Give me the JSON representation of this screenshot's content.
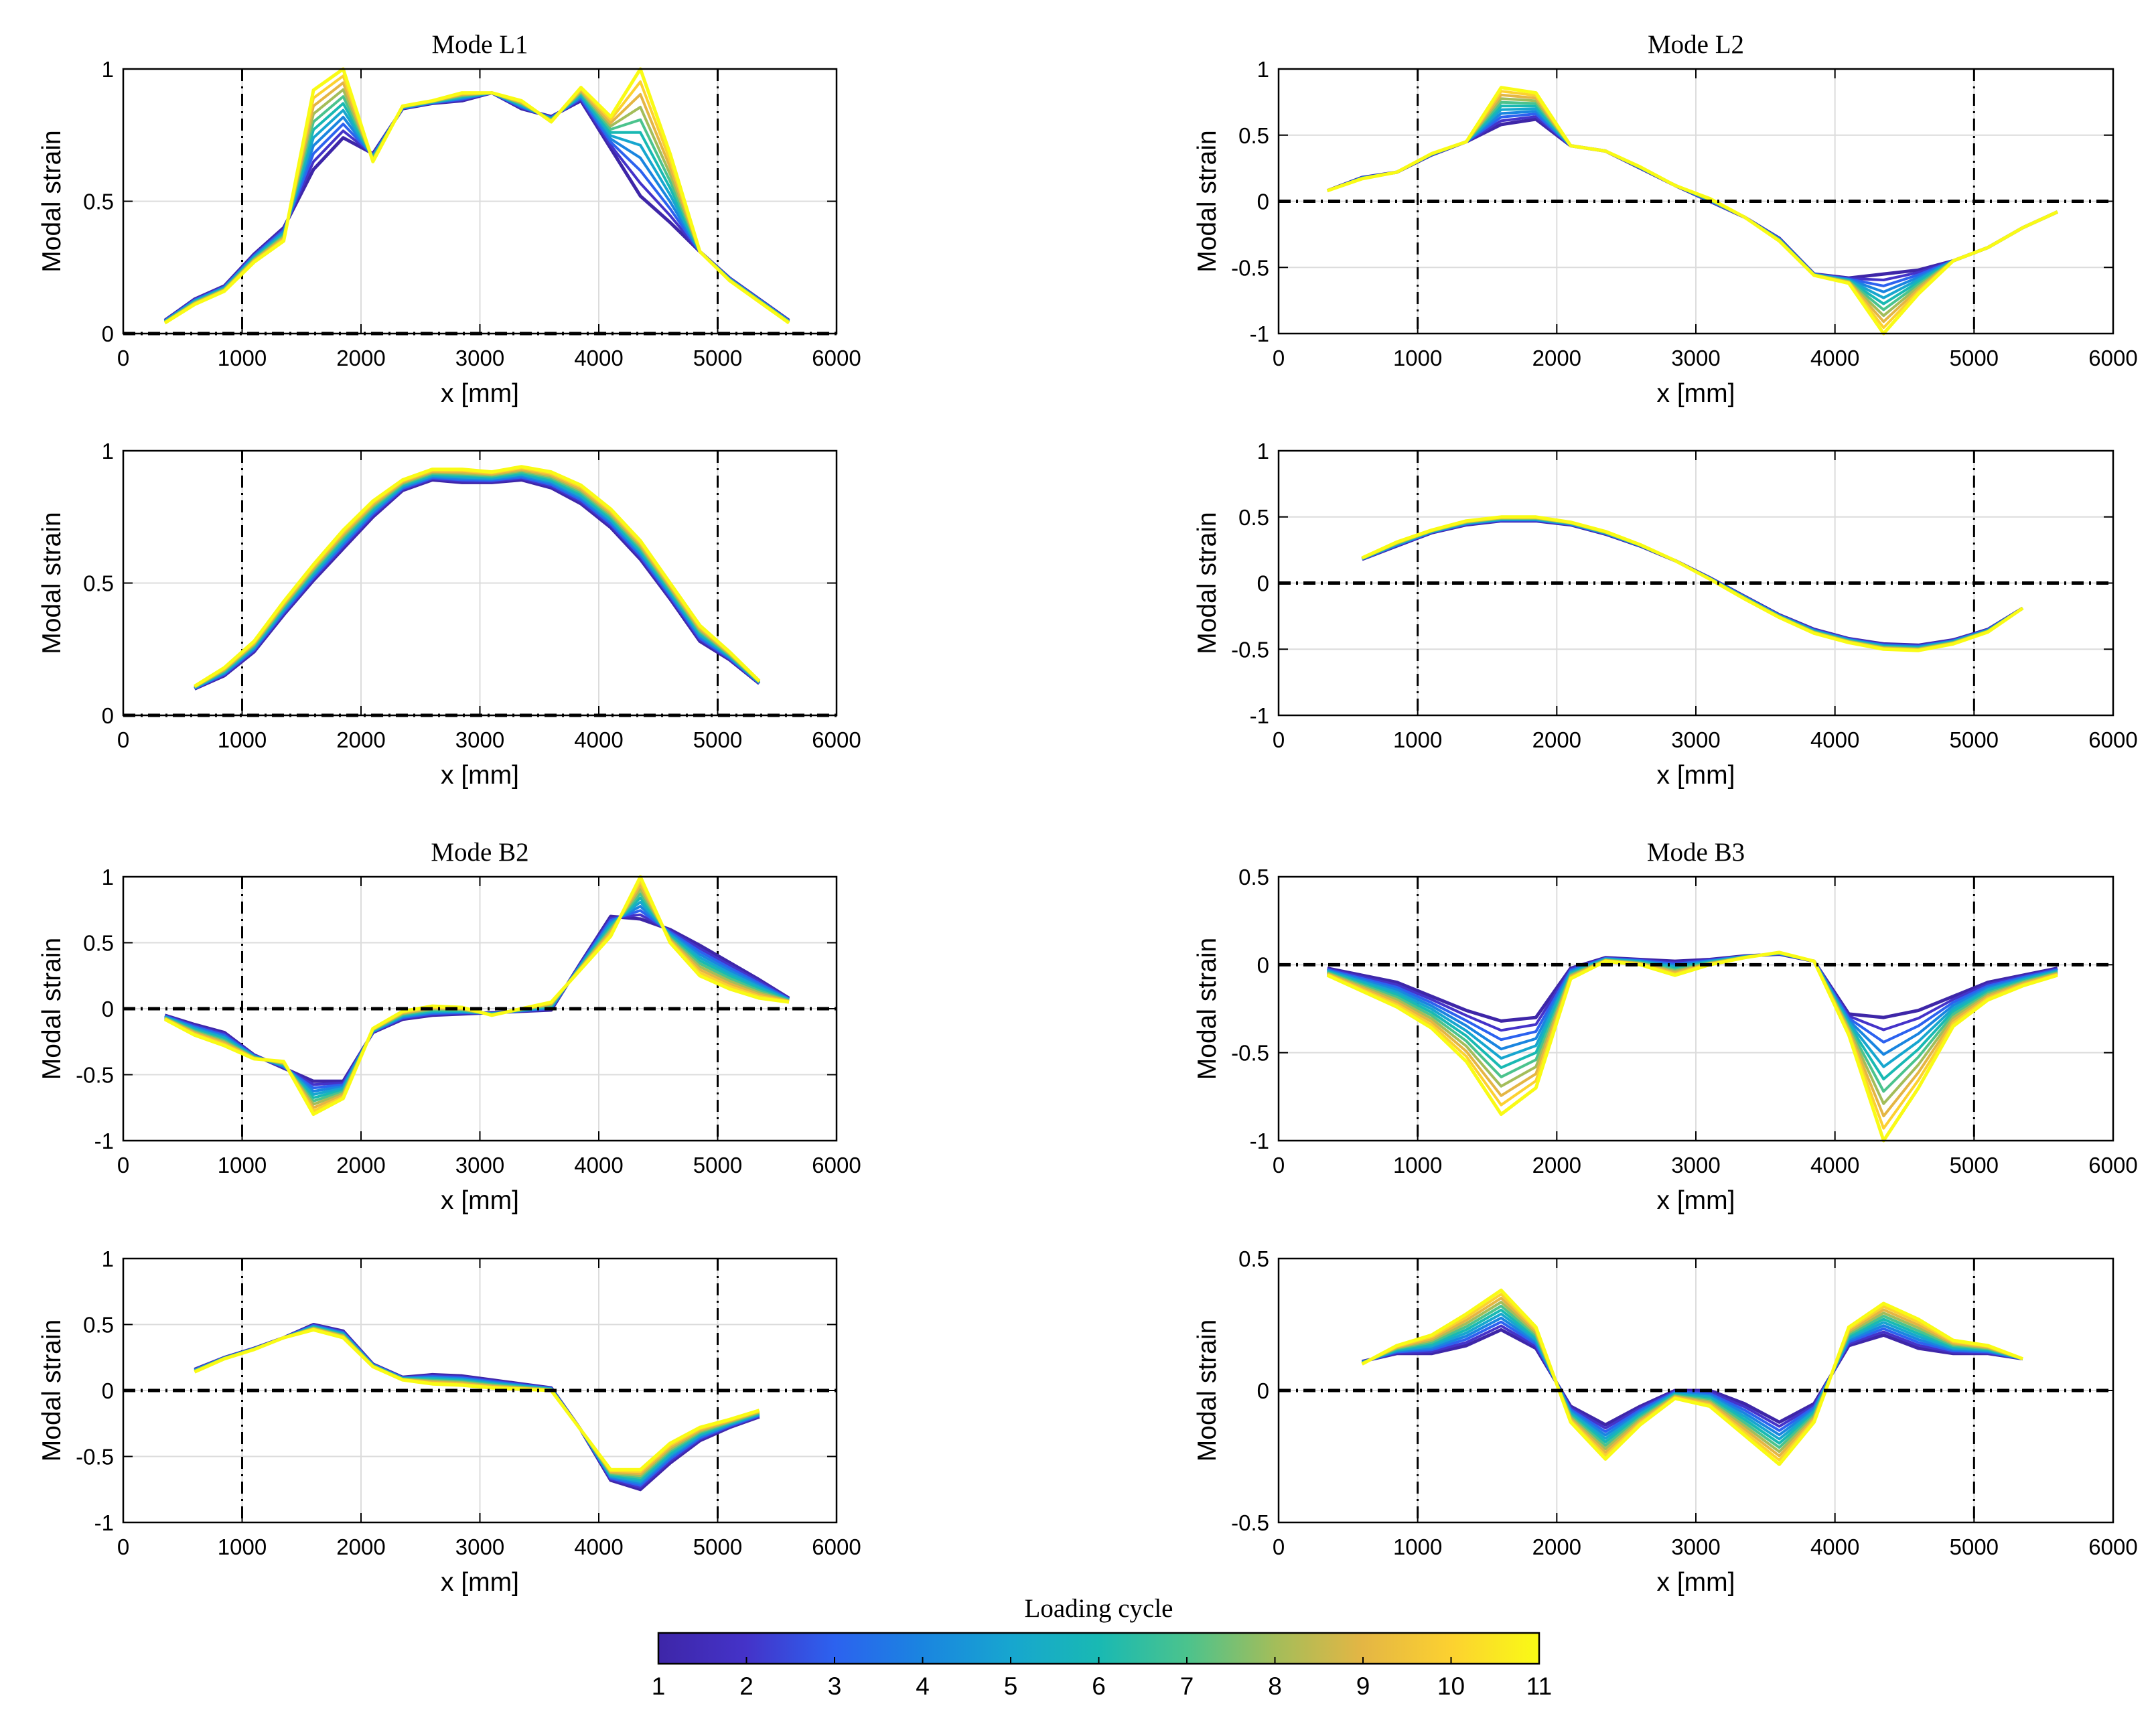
{
  "figure": {
    "colorbar": {
      "label": "Loading cycle",
      "ticks": [
        "1",
        "2",
        "3",
        "4",
        "5",
        "6",
        "7",
        "8",
        "9",
        "10",
        "11"
      ],
      "stops": [
        "#3e26a8",
        "#4433c9",
        "#2c62ef",
        "#1a85e0",
        "#17a6cf",
        "#19b9b3",
        "#4bc38d",
        "#a3bd5a",
        "#e4b644",
        "#fcd130",
        "#f9fb15"
      ]
    }
  },
  "chart_data": [
    {
      "type": "line",
      "title": "Mode L1",
      "xlabel": "x [mm]",
      "ylabel": "Modal strain",
      "xlim": [
        0,
        6000
      ],
      "ylim": [
        0,
        1
      ],
      "xticks": [
        "0",
        "1000",
        "2000",
        "3000",
        "4000",
        "5000",
        "6000"
      ],
      "yticks": [
        "0",
        "0.5",
        "1"
      ],
      "vlines": [
        1000,
        5000
      ],
      "hline": 0,
      "x": [
        350,
        600,
        850,
        1100,
        1350,
        1600,
        1850,
        2100,
        2350,
        2600,
        2850,
        3100,
        3350,
        3600,
        3850,
        4100,
        4350,
        4600,
        4850,
        5100,
        5350,
        5600
      ],
      "series": [
        {
          "name": "Cycle 1",
          "values": [
            0.05,
            0.13,
            0.18,
            0.3,
            0.4,
            0.62,
            0.74,
            0.68,
            0.85,
            0.87,
            0.88,
            0.91,
            0.85,
            0.82,
            0.88,
            0.7,
            0.52,
            0.42,
            0.31,
            0.21,
            0.13,
            0.05
          ]
        },
        {
          "name": "Cycle 11",
          "values": [
            0.04,
            0.11,
            0.16,
            0.27,
            0.35,
            0.92,
            1.0,
            0.65,
            0.86,
            0.88,
            0.91,
            0.91,
            0.88,
            0.8,
            0.93,
            0.82,
            1.0,
            0.68,
            0.31,
            0.2,
            0.12,
            0.04
          ]
        }
      ]
    },
    {
      "type": "line",
      "title": "Mode L2",
      "xlabel": "x [mm]",
      "ylabel": "Modal strain",
      "xlim": [
        0,
        6000
      ],
      "ylim": [
        -1,
        1
      ],
      "xticks": [
        "0",
        "1000",
        "2000",
        "3000",
        "4000",
        "5000",
        "6000"
      ],
      "yticks": [
        "-1",
        "-0.5",
        "0",
        "0.5",
        "1"
      ],
      "vlines": [
        1000,
        5000
      ],
      "hline": 0,
      "x": [
        350,
        600,
        850,
        1100,
        1350,
        1600,
        1850,
        2100,
        2350,
        2600,
        2850,
        3100,
        3350,
        3600,
        3850,
        4100,
        4350,
        4600,
        4850,
        5100,
        5350,
        5600
      ],
      "series": [
        {
          "name": "Cycle 1",
          "values": [
            0.08,
            0.18,
            0.22,
            0.35,
            0.45,
            0.58,
            0.62,
            0.42,
            0.38,
            0.25,
            0.12,
            0.0,
            -0.12,
            -0.28,
            -0.55,
            -0.58,
            -0.55,
            -0.52,
            -0.45,
            -0.35,
            -0.2,
            -0.08
          ]
        },
        {
          "name": "Cycle 11",
          "values": [
            0.08,
            0.17,
            0.22,
            0.36,
            0.45,
            0.86,
            0.82,
            0.42,
            0.38,
            0.26,
            0.12,
            0.02,
            -0.12,
            -0.3,
            -0.56,
            -0.62,
            -1.0,
            -0.7,
            -0.45,
            -0.35,
            -0.2,
            -0.08
          ]
        }
      ]
    },
    {
      "type": "line",
      "title": "",
      "xlabel": "x [mm]",
      "ylabel": "Modal strain",
      "xlim": [
        0,
        6000
      ],
      "ylim": [
        0,
        1
      ],
      "xticks": [
        "0",
        "1000",
        "2000",
        "3000",
        "4000",
        "5000",
        "6000"
      ],
      "yticks": [
        "0",
        "0.5",
        "1"
      ],
      "vlines": [
        1000,
        5000
      ],
      "hline": 0,
      "x": [
        600,
        850,
        1100,
        1350,
        1600,
        1850,
        2100,
        2350,
        2600,
        2850,
        3100,
        3350,
        3600,
        3850,
        4100,
        4350,
        4600,
        4850,
        5100,
        5350
      ],
      "series": [
        {
          "name": "Cycle 1",
          "values": [
            0.1,
            0.15,
            0.24,
            0.38,
            0.51,
            0.63,
            0.75,
            0.85,
            0.89,
            0.88,
            0.88,
            0.89,
            0.86,
            0.8,
            0.71,
            0.59,
            0.44,
            0.28,
            0.21,
            0.12
          ]
        },
        {
          "name": "Cycle 11",
          "values": [
            0.11,
            0.18,
            0.28,
            0.43,
            0.57,
            0.7,
            0.81,
            0.89,
            0.93,
            0.93,
            0.92,
            0.94,
            0.92,
            0.87,
            0.78,
            0.66,
            0.5,
            0.34,
            0.24,
            0.13
          ]
        }
      ]
    },
    {
      "type": "line",
      "title": "",
      "xlabel": "x [mm]",
      "ylabel": "Modal strain",
      "xlim": [
        0,
        6000
      ],
      "ylim": [
        -1,
        1
      ],
      "xticks": [
        "0",
        "1000",
        "2000",
        "3000",
        "4000",
        "5000",
        "6000"
      ],
      "yticks": [
        "-1",
        "-0.5",
        "0",
        "0.5",
        "1"
      ],
      "vlines": [
        1000,
        5000
      ],
      "hline": 0,
      "x": [
        600,
        850,
        1100,
        1350,
        1600,
        1850,
        2100,
        2350,
        2600,
        2850,
        3100,
        3350,
        3600,
        3850,
        4100,
        4350,
        4600,
        4850,
        5100,
        5350
      ],
      "series": [
        {
          "name": "Cycle 1",
          "values": [
            0.18,
            0.28,
            0.38,
            0.44,
            0.47,
            0.47,
            0.44,
            0.37,
            0.28,
            0.17,
            0.04,
            -0.1,
            -0.24,
            -0.35,
            -0.42,
            -0.46,
            -0.47,
            -0.43,
            -0.35,
            -0.19
          ]
        },
        {
          "name": "Cycle 11",
          "values": [
            0.19,
            0.31,
            0.4,
            0.47,
            0.5,
            0.5,
            0.46,
            0.39,
            0.29,
            0.17,
            0.03,
            -0.12,
            -0.26,
            -0.38,
            -0.45,
            -0.5,
            -0.51,
            -0.46,
            -0.37,
            -0.19
          ]
        }
      ]
    },
    {
      "type": "line",
      "title": "Mode B2",
      "xlabel": "x [mm]",
      "ylabel": "Modal strain",
      "xlim": [
        0,
        6000
      ],
      "ylim": [
        -1,
        1
      ],
      "xticks": [
        "0",
        "1000",
        "2000",
        "3000",
        "4000",
        "5000",
        "6000"
      ],
      "yticks": [
        "-1",
        "-0.5",
        "0",
        "0.5",
        "1"
      ],
      "vlines": [
        1000,
        5000
      ],
      "hline": 0,
      "x": [
        350,
        600,
        850,
        1100,
        1350,
        1600,
        1850,
        2100,
        2350,
        2600,
        2850,
        3100,
        3350,
        3600,
        3850,
        4100,
        4350,
        4600,
        4850,
        5100,
        5350,
        5600
      ],
      "series": [
        {
          "name": "Cycle 1",
          "values": [
            -0.05,
            -0.12,
            -0.18,
            -0.35,
            -0.45,
            -0.55,
            -0.55,
            -0.18,
            -0.08,
            -0.05,
            -0.04,
            -0.03,
            -0.02,
            -0.01,
            0.35,
            0.7,
            0.68,
            0.6,
            0.48,
            0.35,
            0.22,
            0.08
          ]
        },
        {
          "name": "Cycle 11",
          "values": [
            -0.08,
            -0.2,
            -0.28,
            -0.38,
            -0.4,
            -0.8,
            -0.68,
            -0.15,
            -0.02,
            0.02,
            0.01,
            -0.05,
            0.0,
            0.05,
            0.3,
            0.55,
            1.0,
            0.5,
            0.25,
            0.15,
            0.08,
            0.05
          ]
        }
      ]
    },
    {
      "type": "line",
      "title": "Mode B3",
      "xlabel": "x [mm]",
      "ylabel": "Modal strain",
      "xlim": [
        0,
        6000
      ],
      "ylim": [
        -1,
        0.5
      ],
      "xticks": [
        "0",
        "1000",
        "2000",
        "3000",
        "4000",
        "5000",
        "6000"
      ],
      "yticks": [
        "-1",
        "-0.5",
        "0",
        "0.5"
      ],
      "vlines": [
        1000,
        5000
      ],
      "hline": 0,
      "x": [
        350,
        600,
        850,
        1100,
        1350,
        1600,
        1850,
        2100,
        2350,
        2600,
        2850,
        3100,
        3350,
        3600,
        3850,
        4100,
        4350,
        4600,
        4850,
        5100,
        5350,
        5600
      ],
      "series": [
        {
          "name": "Cycle 1",
          "values": [
            -0.02,
            -0.06,
            -0.1,
            -0.18,
            -0.26,
            -0.32,
            -0.3,
            -0.02,
            0.04,
            0.03,
            0.02,
            0.03,
            0.05,
            0.06,
            0.02,
            -0.28,
            -0.3,
            -0.26,
            -0.18,
            -0.1,
            -0.06,
            -0.02
          ]
        },
        {
          "name": "Cycle 11",
          "values": [
            -0.06,
            -0.15,
            -0.24,
            -0.36,
            -0.55,
            -0.85,
            -0.7,
            -0.08,
            0.02,
            0.0,
            -0.06,
            0.0,
            0.04,
            0.07,
            0.02,
            -0.4,
            -1.0,
            -0.7,
            -0.35,
            -0.2,
            -0.12,
            -0.06
          ]
        }
      ]
    },
    {
      "type": "line",
      "title": "",
      "xlabel": "x [mm]",
      "ylabel": "Modal strain",
      "xlim": [
        0,
        6000
      ],
      "ylim": [
        -1,
        1
      ],
      "xticks": [
        "0",
        "1000",
        "2000",
        "3000",
        "4000",
        "5000",
        "6000"
      ],
      "yticks": [
        "-1",
        "-0.5",
        "0",
        "0.5",
        "1"
      ],
      "vlines": [
        1000,
        5000
      ],
      "hline": 0,
      "x": [
        600,
        850,
        1100,
        1350,
        1600,
        1850,
        2100,
        2350,
        2600,
        2850,
        3100,
        3350,
        3600,
        3850,
        4100,
        4350,
        4600,
        4850,
        5100,
        5350
      ],
      "series": [
        {
          "name": "Cycle 1",
          "values": [
            0.16,
            0.25,
            0.32,
            0.4,
            0.5,
            0.45,
            0.2,
            0.1,
            0.12,
            0.11,
            0.08,
            0.05,
            0.02,
            -0.3,
            -0.68,
            -0.75,
            -0.55,
            -0.38,
            -0.28,
            -0.2
          ]
        },
        {
          "name": "Cycle 11",
          "values": [
            0.14,
            0.24,
            0.31,
            0.4,
            0.46,
            0.4,
            0.18,
            0.08,
            0.05,
            0.04,
            0.02,
            0.01,
            0.0,
            -0.3,
            -0.6,
            -0.6,
            -0.4,
            -0.28,
            -0.22,
            -0.15
          ]
        }
      ]
    },
    {
      "type": "line",
      "title": "",
      "xlabel": "x [mm]",
      "ylabel": "Modal strain",
      "xlim": [
        0,
        6000
      ],
      "ylim": [
        -0.5,
        0.5
      ],
      "xticks": [
        "0",
        "1000",
        "2000",
        "3000",
        "4000",
        "5000",
        "6000"
      ],
      "yticks": [
        "-0.5",
        "0",
        "0.5"
      ],
      "vlines": [
        1000,
        5000
      ],
      "hline": 0,
      "x": [
        600,
        850,
        1100,
        1350,
        1600,
        1850,
        2100,
        2350,
        2600,
        2850,
        3100,
        3350,
        3600,
        3850,
        4100,
        4350,
        4600,
        4850,
        5100,
        5350
      ],
      "series": [
        {
          "name": "Cycle 1",
          "values": [
            0.11,
            0.14,
            0.14,
            0.17,
            0.23,
            0.16,
            -0.06,
            -0.13,
            -0.06,
            0.0,
            0.0,
            -0.05,
            -0.12,
            -0.05,
            0.17,
            0.21,
            0.16,
            0.14,
            0.14,
            0.12
          ]
        },
        {
          "name": "Cycle 11",
          "values": [
            0.1,
            0.17,
            0.21,
            0.29,
            0.38,
            0.24,
            -0.12,
            -0.26,
            -0.13,
            -0.03,
            -0.06,
            -0.17,
            -0.28,
            -0.12,
            0.24,
            0.33,
            0.27,
            0.19,
            0.17,
            0.12
          ]
        }
      ]
    }
  ]
}
